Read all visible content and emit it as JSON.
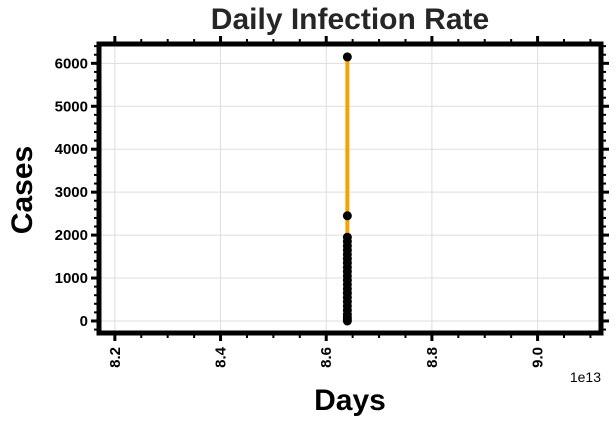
{
  "chart_data": {
    "type": "line",
    "title": "Daily Infection Rate",
    "xlabel": "Days",
    "ylabel": "Cases",
    "x_offset_label": "1e13",
    "xlim": [
      8.17,
      9.12
    ],
    "ylim": [
      -280,
      6450
    ],
    "x_ticks": [
      8.2,
      8.4,
      8.6,
      8.8,
      9.0
    ],
    "x_tick_labels": [
      "8.2",
      "8.4",
      "8.6",
      "8.8",
      "9.0"
    ],
    "y_ticks": [
      0,
      1000,
      2000,
      3000,
      4000,
      5000,
      6000
    ],
    "y_tick_labels": [
      "0",
      "1000",
      "2000",
      "3000",
      "4000",
      "5000",
      "6000"
    ],
    "grid": true,
    "series": [
      {
        "x": [
          8.64,
          8.64,
          8.64,
          8.64,
          8.64,
          8.64,
          8.64,
          8.64,
          8.64,
          8.64,
          8.64,
          8.64,
          8.64,
          8.64,
          8.64,
          8.64,
          8.64,
          8.64,
          8.64,
          8.64,
          8.64,
          8.64,
          8.64,
          8.64
        ],
        "values": [
          6150,
          2450,
          1950,
          1850,
          1750,
          1650,
          1550,
          1450,
          1350,
          1250,
          1150,
          1050,
          950,
          850,
          750,
          650,
          550,
          450,
          350,
          250,
          150,
          80,
          30,
          0
        ]
      }
    ],
    "colors": {
      "line": "#f5a300",
      "marker": "#000000",
      "frame": "#000000",
      "grid": "#dddddd"
    }
  }
}
